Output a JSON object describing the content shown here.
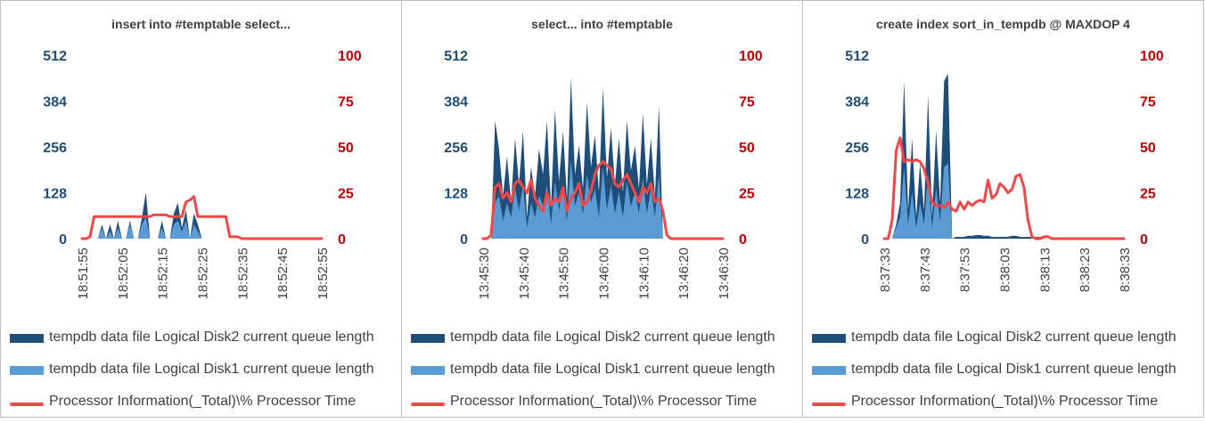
{
  "colors": {
    "disk2": "#1f4e79",
    "disk1": "#5b9bd5",
    "cpu": "#f04848",
    "left_axis_text": "#1f4e79",
    "right_axis_text": "#c00000"
  },
  "legend": [
    "tempdb data file Logical Disk2 current queue length",
    "tempdb data file Logical Disk1 current queue length",
    "Processor Information(_Total)\\% Processor Time"
  ],
  "chart_data": [
    {
      "type": "area",
      "title": "insert into #temptable select...",
      "y_left": {
        "ticks": [
          "512",
          "384",
          "256",
          "128",
          "0"
        ],
        "range": [
          0,
          512
        ]
      },
      "y_right": {
        "ticks": [
          "100",
          "75",
          "50",
          "25",
          "0"
        ],
        "range": [
          0,
          100
        ]
      },
      "x_ticks": [
        "18:51:55",
        "18:52:05",
        "18:52:15",
        "18:52:25",
        "18:52:35",
        "18:52:45",
        "18:52:55"
      ],
      "series": [
        {
          "name": "tempdb data file Logical Disk2 current queue length",
          "axis": "left",
          "values": [
            0,
            0,
            0,
            0,
            0,
            40,
            0,
            40,
            0,
            50,
            0,
            0,
            50,
            0,
            0,
            60,
            130,
            0,
            0,
            0,
            50,
            0,
            0,
            70,
            100,
            30,
            80,
            0,
            70,
            40,
            0,
            0,
            0,
            0,
            0,
            0,
            0,
            0,
            0,
            0,
            0,
            0,
            0,
            0,
            0,
            0,
            0,
            0,
            0,
            0,
            0,
            0,
            0,
            0,
            0,
            0,
            0,
            0,
            0,
            0,
            0
          ]
        },
        {
          "name": "tempdb data file Logical Disk1 current queue length",
          "axis": "left",
          "values": [
            0,
            0,
            0,
            0,
            0,
            30,
            0,
            20,
            0,
            30,
            0,
            0,
            40,
            0,
            0,
            40,
            60,
            0,
            0,
            0,
            30,
            0,
            0,
            40,
            50,
            20,
            50,
            0,
            40,
            20,
            0,
            0,
            0,
            0,
            0,
            0,
            0,
            0,
            0,
            0,
            0,
            0,
            0,
            0,
            0,
            0,
            0,
            0,
            0,
            0,
            0,
            0,
            0,
            0,
            0,
            0,
            0,
            0,
            0,
            0,
            0
          ]
        },
        {
          "name": "Processor Information(_Total)\\% Processor Time",
          "axis": "right",
          "values": [
            0,
            0,
            1,
            12,
            12,
            12,
            12,
            12,
            12,
            12,
            12,
            12,
            12,
            12,
            12,
            12,
            12,
            12,
            13,
            13,
            13,
            13,
            12,
            12,
            12,
            12,
            20,
            21,
            23,
            12,
            12,
            12,
            12,
            12,
            12,
            12,
            12,
            1,
            1,
            1,
            0,
            0,
            0,
            0,
            0,
            0,
            0,
            0,
            0,
            0,
            0,
            0,
            0,
            0,
            0,
            0,
            0,
            0,
            0,
            0,
            0
          ]
        }
      ]
    },
    {
      "type": "area",
      "title": "select... into #temptable",
      "y_left": {
        "ticks": [
          "512",
          "384",
          "256",
          "128",
          "0"
        ],
        "range": [
          0,
          512
        ]
      },
      "y_right": {
        "ticks": [
          "100",
          "75",
          "50",
          "25",
          "0"
        ],
        "range": [
          0,
          100
        ]
      },
      "x_ticks": [
        "13:45:30",
        "13:45:40",
        "13:45:50",
        "13:46:00",
        "13:46:10",
        "13:46:20",
        "13:46:30"
      ],
      "series": [
        {
          "name": "tempdb data file Logical Disk2 current queue length",
          "axis": "left",
          "values": [
            0,
            0,
            0,
            330,
            250,
            120,
            230,
            100,
            280,
            150,
            300,
            60,
            200,
            120,
            250,
            180,
            330,
            90,
            360,
            160,
            300,
            110,
            450,
            180,
            260,
            140,
            380,
            200,
            290,
            130,
            420,
            170,
            310,
            150,
            280,
            130,
            330,
            190,
            260,
            140,
            350,
            150,
            280,
            120,
            370,
            0,
            0,
            0,
            0,
            0,
            0,
            0,
            0,
            0,
            0,
            0,
            0,
            0,
            0,
            0,
            0
          ]
        },
        {
          "name": "tempdb data file Logical Disk1 current queue length",
          "axis": "left",
          "values": [
            0,
            0,
            0,
            100,
            120,
            50,
            100,
            60,
            140,
            80,
            150,
            30,
            100,
            60,
            120,
            90,
            150,
            40,
            160,
            80,
            140,
            50,
            220,
            90,
            130,
            70,
            180,
            100,
            140,
            60,
            200,
            80,
            150,
            70,
            130,
            60,
            160,
            90,
            130,
            70,
            170,
            70,
            140,
            60,
            180,
            0,
            0,
            0,
            0,
            0,
            0,
            0,
            0,
            0,
            0,
            0,
            0,
            0,
            0,
            0,
            0
          ]
        },
        {
          "name": "Processor Information(_Total)\\% Processor Time",
          "axis": "right",
          "values": [
            0,
            0,
            2,
            28,
            30,
            22,
            25,
            20,
            30,
            32,
            28,
            25,
            32,
            22,
            18,
            15,
            25,
            18,
            22,
            20,
            28,
            15,
            22,
            25,
            30,
            18,
            20,
            26,
            35,
            40,
            42,
            40,
            38,
            30,
            28,
            32,
            35,
            30,
            25,
            20,
            28,
            25,
            30,
            20,
            22,
            15,
            2,
            0,
            0,
            0,
            0,
            0,
            0,
            0,
            0,
            0,
            0,
            0,
            0,
            0,
            0
          ]
        }
      ]
    },
    {
      "type": "area",
      "title": "create index sort_in_tempdb @ MAXDOP 4",
      "y_left": {
        "ticks": [
          "512",
          "384",
          "256",
          "128",
          "0"
        ],
        "range": [
          0,
          512
        ]
      },
      "y_right": {
        "ticks": [
          "100",
          "75",
          "50",
          "25",
          "0"
        ],
        "range": [
          0,
          100
        ]
      },
      "x_ticks": [
        "8:37:33",
        "8:37:43",
        "8:37:53",
        "8:38:03",
        "8:38:13",
        "8:38:23",
        "8:38:33"
      ],
      "series": [
        {
          "name": "tempdb data file Logical Disk2 current queue length",
          "axis": "left",
          "values": [
            0,
            0,
            0,
            40,
            100,
            440,
            80,
            280,
            60,
            210,
            80,
            400,
            60,
            300,
            100,
            440,
            460,
            0,
            5,
            5,
            5,
            8,
            8,
            10,
            10,
            8,
            8,
            5,
            5,
            5,
            5,
            5,
            8,
            8,
            5,
            5,
            5,
            5,
            5,
            5,
            0,
            0,
            0,
            0,
            0,
            0,
            0,
            0,
            0,
            0,
            0,
            0,
            0,
            0,
            0,
            0,
            0,
            0,
            0,
            0,
            0
          ]
        },
        {
          "name": "tempdb data file Logical Disk1 current queue length",
          "axis": "left",
          "values": [
            0,
            0,
            0,
            30,
            60,
            200,
            40,
            130,
            30,
            100,
            40,
            180,
            30,
            140,
            50,
            200,
            210,
            0,
            0,
            0,
            0,
            0,
            0,
            0,
            0,
            0,
            0,
            0,
            0,
            0,
            0,
            0,
            0,
            0,
            0,
            0,
            0,
            0,
            0,
            0,
            0,
            0,
            0,
            0,
            0,
            0,
            0,
            0,
            0,
            0,
            0,
            0,
            0,
            0,
            0,
            0,
            0,
            0,
            0,
            0,
            0
          ]
        },
        {
          "name": "Processor Information(_Total)\\% Processor Time",
          "axis": "right",
          "values": [
            0,
            0,
            10,
            48,
            55,
            42,
            43,
            42,
            43,
            42,
            38,
            30,
            20,
            18,
            18,
            17,
            20,
            16,
            15,
            20,
            16,
            20,
            18,
            20,
            21,
            20,
            32,
            22,
            24,
            30,
            28,
            25,
            27,
            34,
            35,
            28,
            10,
            1,
            0,
            0,
            1,
            1,
            0,
            0,
            0,
            0,
            0,
            0,
            0,
            0,
            0,
            0,
            0,
            0,
            0,
            0,
            0,
            0,
            0,
            0,
            0
          ]
        }
      ]
    }
  ]
}
